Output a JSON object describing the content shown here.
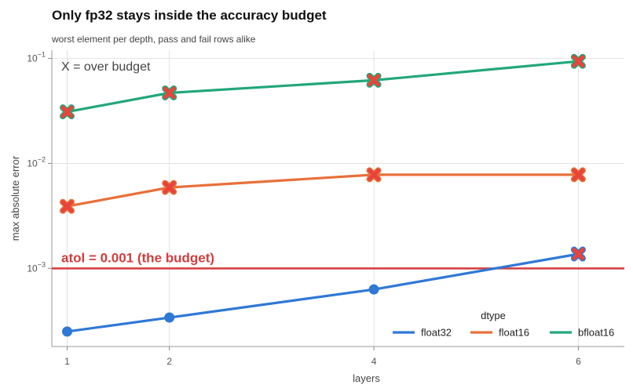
{
  "chart_data": {
    "type": "line",
    "title": "Only fp32 stays inside the accuracy budget",
    "subtitle": "worst element per depth, pass and fail rows alike",
    "xlabel": "layers",
    "ylabel": "max absolute error",
    "x": [
      1,
      2,
      4,
      6
    ],
    "x_ticks": [
      "1",
      "2",
      "4",
      "6"
    ],
    "xlim": [
      0.85,
      6.45
    ],
    "y_scale": "log",
    "ylim": [
      0.00018,
      0.12
    ],
    "y_ticks": [
      {
        "value": 0.1,
        "base": "10",
        "exp": "−1"
      },
      {
        "value": 0.01,
        "base": "10",
        "exp": "−2"
      },
      {
        "value": 0.001,
        "base": "10",
        "exp": "−3"
      }
    ],
    "grid": true,
    "series": [
      {
        "name": "float32",
        "color": "#2f78d6",
        "values": [
          0.00025,
          0.00034,
          0.00063,
          0.00137
        ],
        "over_budget": [
          false,
          false,
          false,
          true
        ]
      },
      {
        "name": "float16",
        "color": "#e8703a",
        "values": [
          0.0039,
          0.0059,
          0.0078,
          0.0078
        ],
        "over_budget": [
          true,
          true,
          true,
          true
        ]
      },
      {
        "name": "bfloat16",
        "color": "#22a77a",
        "values": [
          0.031,
          0.047,
          0.062,
          0.094
        ],
        "over_budget": [
          true,
          true,
          true,
          true
        ]
      }
    ],
    "reference_line": {
      "value": 0.001,
      "label": "atol = 0.001  (the budget)",
      "color": "#d43c3c"
    },
    "annotation": "X = over budget",
    "marker_over_color": "#e8443a",
    "legend": {
      "title": "dtype",
      "placement": "bottom-right"
    }
  }
}
